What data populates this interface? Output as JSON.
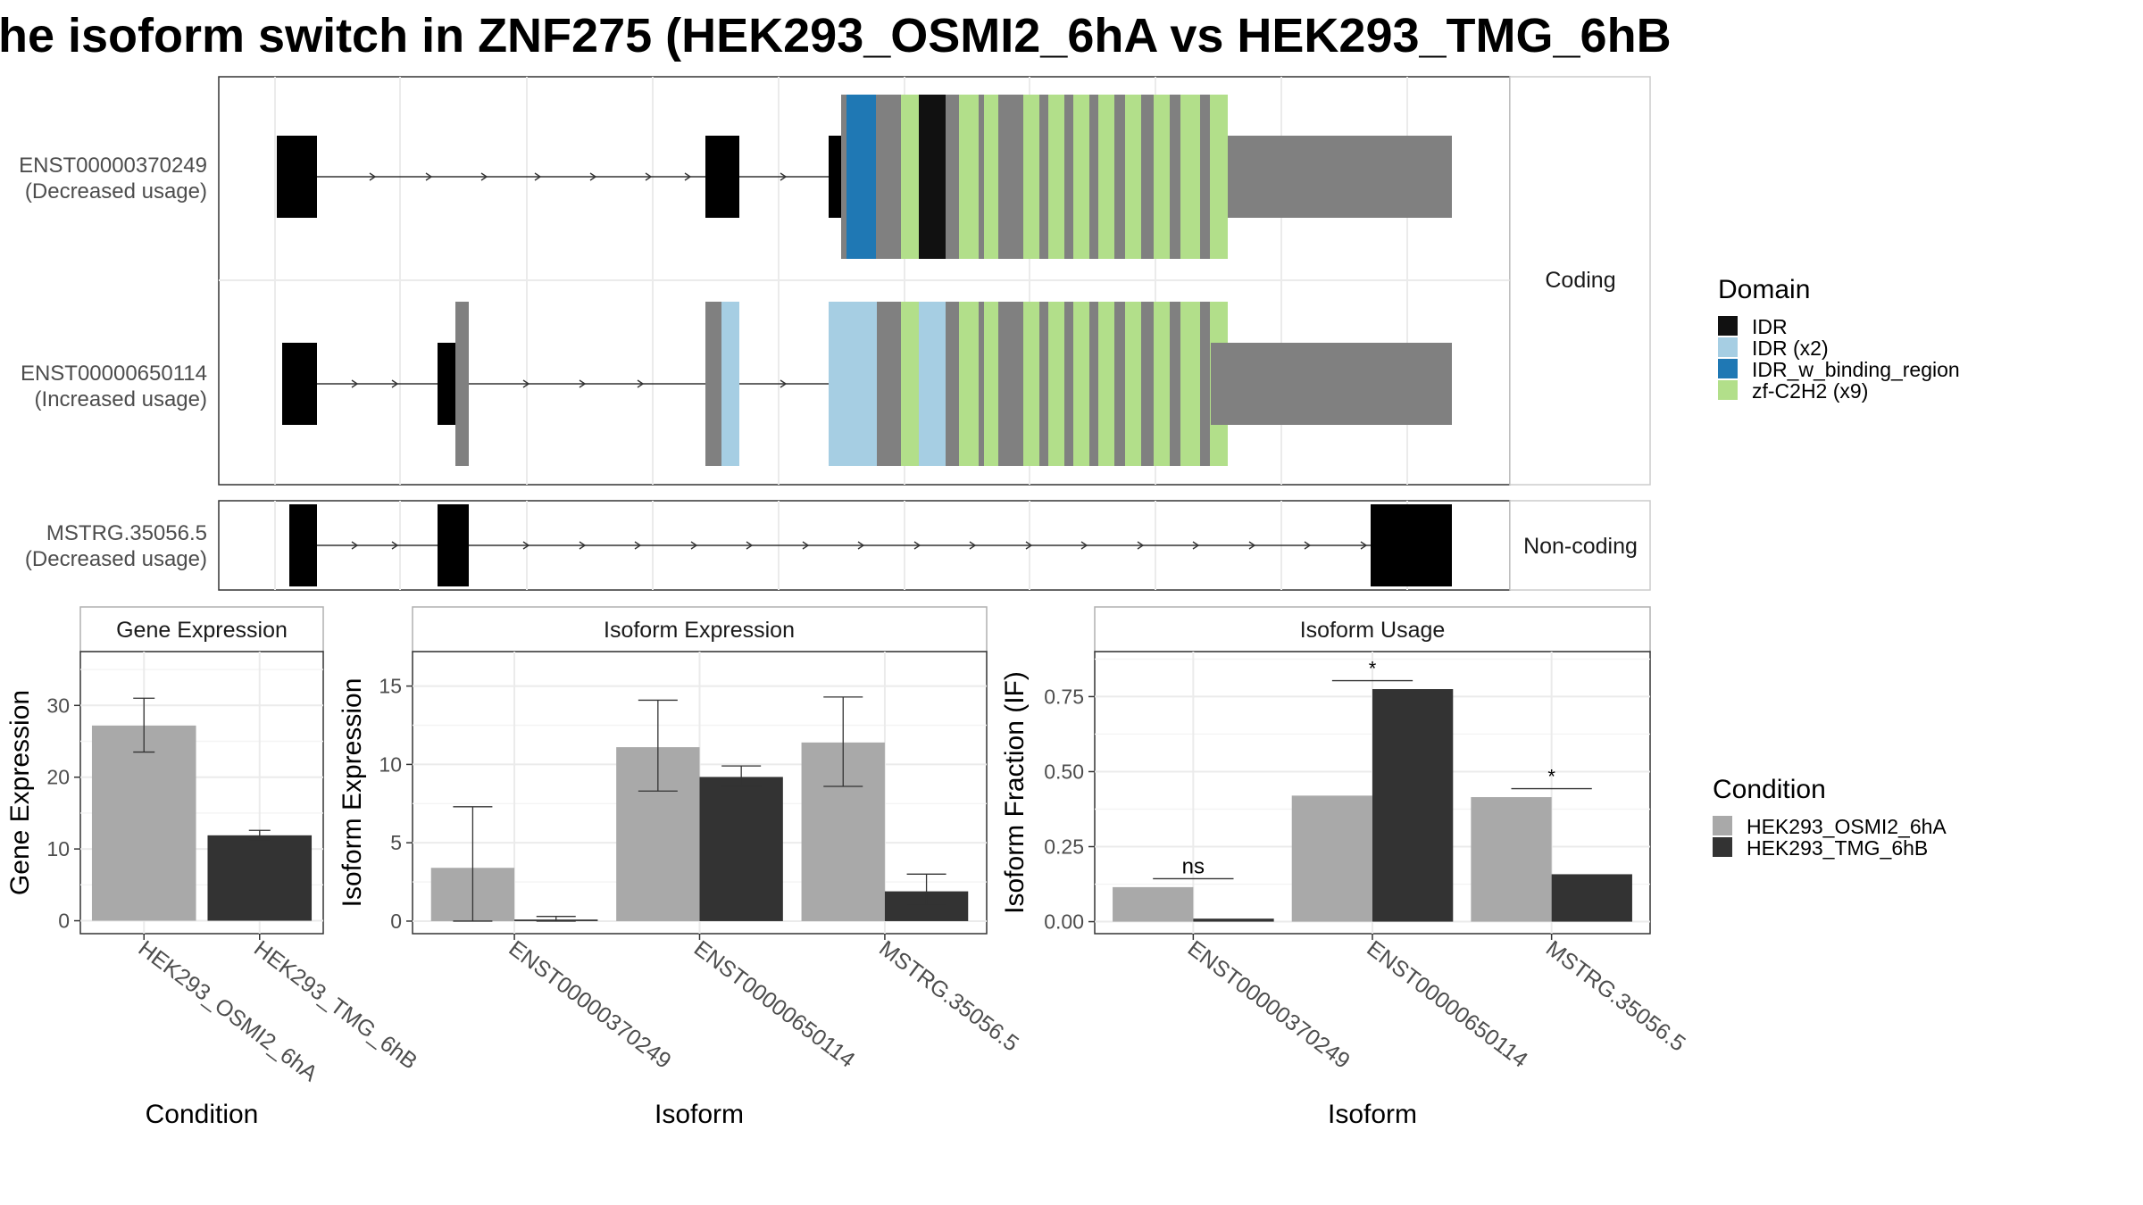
{
  "title": "he isoform switch in ZNF275 (HEK293_OSMI2_6hA vs HEK293_TMG_6hB",
  "colors": {
    "exon": "#808080",
    "idr": "#111111",
    "idr_x2": "#a6cee3",
    "idr_w_binding": "#1f78b4",
    "zf": "#b2df8a",
    "cond_a": "#a9a9a9",
    "cond_b": "#333333"
  },
  "structure": {
    "panels": [
      {
        "label": "Coding",
        "rows": [
          {
            "id": "ENST00000370249",
            "usage": "(Decreased usage)"
          },
          {
            "id": "ENST00000650114",
            "usage": "(Increased usage)"
          }
        ]
      },
      {
        "label": "Non-coding",
        "rows": [
          {
            "id": "MSTRG.35056.5",
            "usage": "(Decreased usage)"
          }
        ]
      }
    ]
  },
  "domain_legend": {
    "title": "Domain",
    "items": [
      {
        "label": "IDR",
        "color": "#111111"
      },
      {
        "label": "IDR (x2)",
        "color": "#a6cee3"
      },
      {
        "label": "IDR_w_binding_region",
        "color": "#1f78b4"
      },
      {
        "label": "zf-C2H2 (x9)",
        "color": "#b2df8a"
      }
    ]
  },
  "condition_legend": {
    "title": "Condition",
    "items": [
      {
        "label": "HEK293_OSMI2_6hA",
        "color": "#a9a9a9"
      },
      {
        "label": "HEK293_TMG_6hB",
        "color": "#333333"
      }
    ]
  },
  "chart_data": [
    {
      "type": "bar",
      "title": "Gene Expression",
      "xlabel": "Condition",
      "ylabel": "Gene Expression",
      "categories": [
        "HEK293_OSMI2_6hA",
        "HEK293_TMG_6hB"
      ],
      "values": [
        27.2,
        11.9
      ],
      "err_low": [
        23.5,
        11.3
      ],
      "err_high": [
        31.0,
        12.6
      ],
      "ylim": [
        -1.8,
        37.5
      ],
      "yticks": [
        0,
        10,
        20,
        30
      ],
      "tick_labels": [
        "0",
        "10",
        "20",
        "30"
      ]
    },
    {
      "type": "bar",
      "title": "Isoform Expression",
      "xlabel": "Isoform",
      "ylabel": "Isoform Expression",
      "categories": [
        "ENST00000370249",
        "ENST00000650114",
        "MSTRG.35056.5"
      ],
      "series": [
        {
          "name": "HEK293_OSMI2_6hA",
          "values": [
            3.4,
            11.1,
            11.4
          ],
          "err_low": [
            0.0,
            8.3,
            8.6
          ],
          "err_high": [
            7.3,
            14.1,
            14.3
          ]
        },
        {
          "name": "HEK293_TMG_6hB",
          "values": [
            0.1,
            9.2,
            1.9
          ],
          "err_low": [
            0.0,
            8.6,
            1.0
          ],
          "err_high": [
            0.3,
            9.9,
            3.0
          ]
        }
      ],
      "ylim": [
        -0.8,
        17.2
      ],
      "yticks": [
        0,
        5,
        10,
        15
      ],
      "tick_labels": [
        "0",
        "5",
        "10",
        "15"
      ]
    },
    {
      "type": "bar",
      "title": "Isoform Usage",
      "xlabel": "Isoform",
      "ylabel": "Isoform Fraction (IF)",
      "categories": [
        "ENST00000370249",
        "ENST00000650114",
        "MSTRG.35056.5"
      ],
      "series": [
        {
          "name": "HEK293_OSMI2_6hA",
          "values": [
            0.115,
            0.42,
            0.415
          ]
        },
        {
          "name": "HEK293_TMG_6hB",
          "values": [
            0.01,
            0.775,
            0.158
          ]
        }
      ],
      "significance": [
        "ns",
        "*",
        "*"
      ],
      "ylim": [
        -0.04,
        0.9
      ],
      "yticks": [
        0,
        0.25,
        0.5,
        0.75
      ],
      "tick_labels": [
        "0.00",
        "0.25",
        "0.50",
        "0.75"
      ]
    }
  ]
}
